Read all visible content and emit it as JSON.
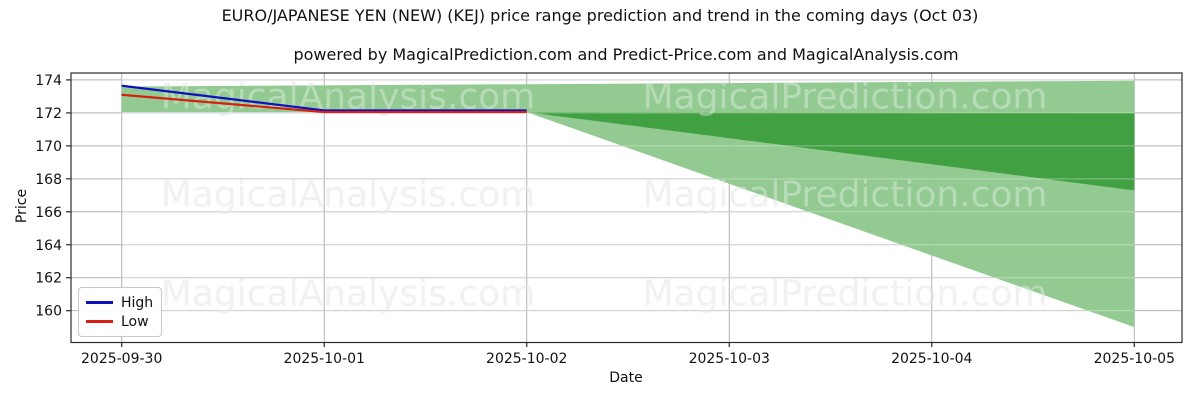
{
  "title": "EURO/JAPANESE YEN (NEW) (KEJ) price range prediction and trend in the coming days (Oct 03)",
  "subtitle": "powered by MagicalPrediction.com and Predict-Price.com and MagicalAnalysis.com",
  "axes": {
    "xlabel": "Date",
    "ylabel": "Price"
  },
  "legend": {
    "entries": [
      {
        "label": "High",
        "color": "#0f0fbe"
      },
      {
        "label": "Low",
        "color": "#d81f12"
      }
    ]
  },
  "watermarks": {
    "left": "MagicalAnalysis.com",
    "right": "MagicalPrediction.com"
  },
  "chart_data": {
    "type": "line",
    "x_dates": [
      "2025-09-30",
      "2025-10-01",
      "2025-10-02",
      "2025-10-03",
      "2025-10-04",
      "2025-10-05"
    ],
    "y_ticks": [
      160,
      162,
      164,
      166,
      168,
      170,
      172,
      174
    ],
    "ylim": [
      158.07,
      174.42
    ],
    "grid": true,
    "legend_position": "lower left",
    "series": [
      {
        "name": "High",
        "color": "#0f0fbe",
        "points": [
          [
            0,
            173.65
          ],
          [
            1,
            172.15
          ],
          [
            2,
            172.15
          ]
        ]
      },
      {
        "name": "Low",
        "color": "#d81f12",
        "points": [
          [
            0,
            173.1
          ],
          [
            1,
            172.05
          ],
          [
            2,
            172.05
          ]
        ]
      }
    ],
    "bands": [
      {
        "name": "history-range-band",
        "shade": "light",
        "upper": [
          [
            0,
            173.6
          ],
          [
            5,
            173.95
          ]
        ],
        "lower": [
          [
            0,
            172.05
          ],
          [
            5,
            172.05
          ]
        ]
      },
      {
        "name": "forecast-outer-fan",
        "shade": "light",
        "upper": [
          [
            2,
            172.05
          ],
          [
            5,
            172.05
          ]
        ],
        "lower": [
          [
            2,
            172.05
          ],
          [
            5,
            159.0
          ]
        ]
      },
      {
        "name": "forecast-inner-fan",
        "shade": "dark",
        "upper": [
          [
            2,
            172.05
          ],
          [
            5,
            172.0
          ]
        ],
        "lower": [
          [
            2,
            172.05
          ],
          [
            5,
            167.3
          ]
        ]
      }
    ],
    "colors": {
      "light_green": "#8ec88e",
      "dark_green": "#41a041",
      "grid": "#b3b3b3",
      "watermark": "#ebebeb",
      "spine": "#2b2b2b"
    }
  }
}
